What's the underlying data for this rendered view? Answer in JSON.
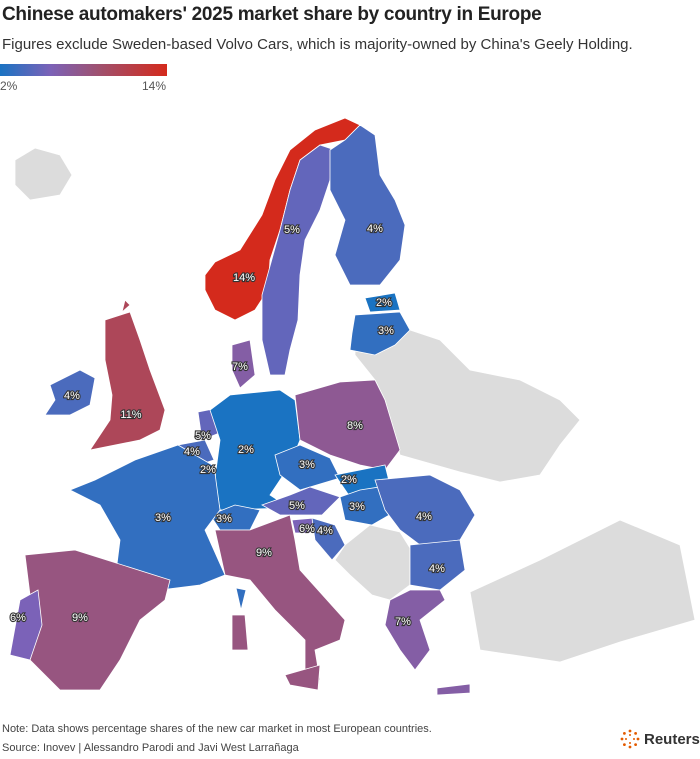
{
  "header": {
    "title": "Chinese automakers' 2025 market share by country in Europe",
    "subtitle": "Figures exclude Sweden-based Volvo Cars, which is majority-owned by China's Geely Holding."
  },
  "legend": {
    "min_label": "2%",
    "max_label": "14%",
    "min": 2,
    "max": 14,
    "colors": [
      "#1a73c2",
      "#7b62b8",
      "#a0506d",
      "#d42a1c"
    ]
  },
  "map": {
    "no_data_color": "#dcdcdc",
    "labels": [
      "14%",
      "5%",
      "4%",
      "2%",
      "3%",
      "7%",
      "4%",
      "11%",
      "5%",
      "4%",
      "2%",
      "2%",
      "8%",
      "3%",
      "2%",
      "3%",
      "5%",
      "3%",
      "6%",
      "4%",
      "3%",
      "9%",
      "4%",
      "4%",
      "9%",
      "6%",
      "7%"
    ]
  },
  "footer": {
    "note": "Note: Data shows percentage shares of the new car market in most European countries.",
    "source": "Source: Inovev | Alessandro Parodi and Javi West Larrañaga",
    "brand": "Reuters"
  }
}
